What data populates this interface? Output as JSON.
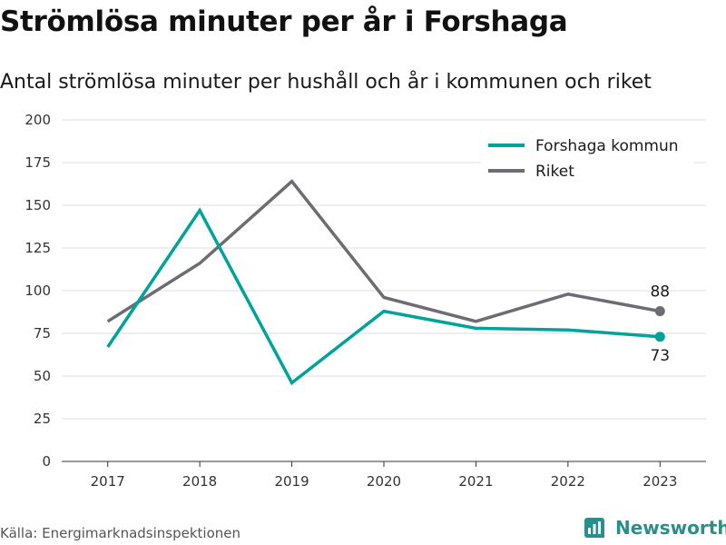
{
  "title": "Strömlösa minuter per år i Forshaga",
  "subtitle": "Antal strömlösa minuter per hushåll och år i kommunen och riket",
  "source": "Källa: Energimarknadsinspektionen",
  "brand": {
    "name": "Newsworthy",
    "icon": "newsworthy-logo-icon",
    "color": "#2a8f8a"
  },
  "chart_data": {
    "type": "line",
    "x": [
      "2017",
      "2018",
      "2019",
      "2020",
      "2021",
      "2022",
      "2023"
    ],
    "yticks": [
      0,
      25,
      50,
      75,
      100,
      125,
      150,
      175,
      200
    ],
    "ylim": [
      0,
      200
    ],
    "grid": true,
    "legend_position": "top-right",
    "series": [
      {
        "name": "Forshaga kommun",
        "color": "#00a39a",
        "values": [
          67,
          147,
          46,
          88,
          78,
          77,
          73
        ],
        "end_label": "73"
      },
      {
        "name": "Riket",
        "color": "#6d6c72",
        "values": [
          82,
          116,
          164,
          96,
          82,
          98,
          88
        ],
        "end_label": "88"
      }
    ]
  }
}
